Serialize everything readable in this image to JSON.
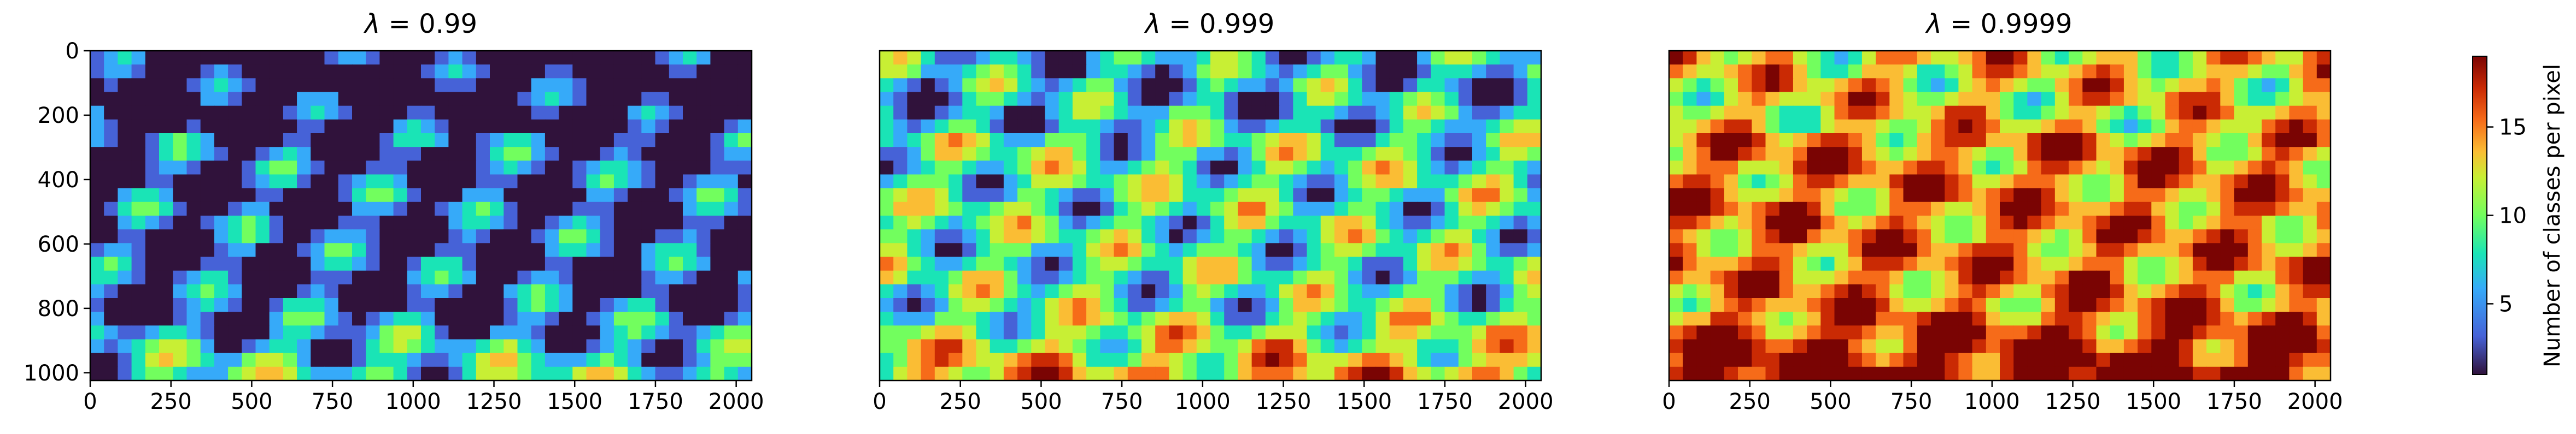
{
  "chart_data": [
    {
      "type": "heatmap",
      "title_prefix": "λ =",
      "title_value": "0.99",
      "x_range": [
        0,
        2048
      ],
      "y_range": [
        0,
        1024
      ],
      "x_ticks": [
        0,
        250,
        500,
        750,
        1000,
        1250,
        1500,
        1750,
        2000
      ],
      "y_ticks": [
        0,
        200,
        400,
        600,
        800,
        1000
      ],
      "value_range": [
        1,
        19
      ],
      "mean_level": 3
    },
    {
      "type": "heatmap",
      "title_prefix": "λ =",
      "title_value": "0.999",
      "x_range": [
        0,
        2048
      ],
      "y_range": [
        0,
        1024
      ],
      "x_ticks": [
        0,
        250,
        500,
        750,
        1000,
        1250,
        1500,
        1750,
        2000
      ],
      "y_ticks": [],
      "value_range": [
        1,
        19
      ],
      "mean_level": 8
    },
    {
      "type": "heatmap",
      "title_prefix": "λ =",
      "title_value": "0.9999",
      "x_range": [
        0,
        2048
      ],
      "y_range": [
        0,
        1024
      ],
      "x_ticks": [
        0,
        250,
        500,
        750,
        1000,
        1250,
        1500,
        1750,
        2000
      ],
      "y_ticks": [],
      "value_range": [
        1,
        19
      ],
      "mean_level": 14
    }
  ],
  "colorbar": {
    "label": "Number of classes per pixel",
    "ticks": [
      5,
      10,
      15
    ],
    "range": [
      1,
      19
    ],
    "colormap": "turbo"
  },
  "colors": {
    "low": "#30123b",
    "blue": "#4662d7",
    "cyan": "#1ae4b6",
    "green": "#a4fc3c",
    "yellow": "#fabd34",
    "orange": "#e4460a",
    "high": "#7a0403"
  }
}
